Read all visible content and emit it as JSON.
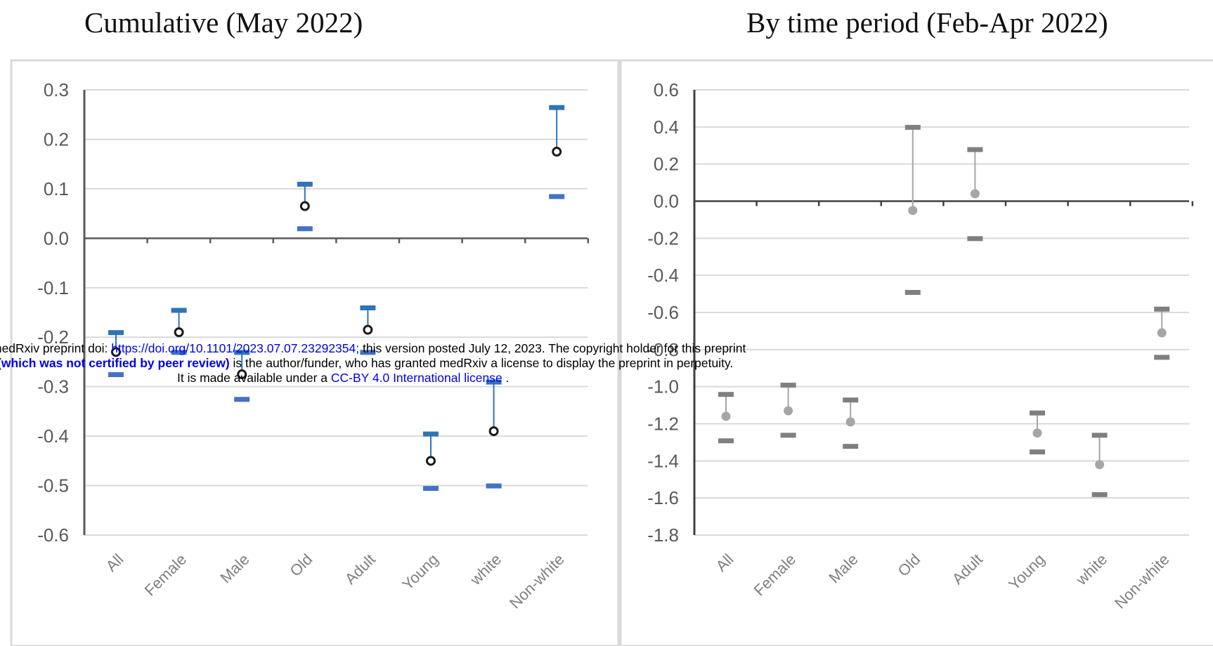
{
  "chart_data": [
    {
      "type": "scatter",
      "title": "Cumulative (May 2022)",
      "categories": [
        "All",
        "Female",
        "Male",
        "Old",
        "Adult",
        "Young",
        "white",
        "Non-white"
      ],
      "ylim": [
        -0.6,
        0.3
      ],
      "yticks": [
        "0.3",
        "0.2",
        "0.1",
        "0.0",
        "-0.1",
        "-0.2",
        "-0.3",
        "-0.4",
        "-0.5",
        "-0.6"
      ],
      "grid": true,
      "estimate": [
        -0.23,
        -0.19,
        -0.275,
        0.065,
        -0.185,
        -0.45,
        -0.39,
        0.175
      ],
      "upper": [
        -0.19,
        -0.145,
        -0.23,
        0.11,
        -0.14,
        -0.395,
        -0.29,
        0.265
      ],
      "lower": [
        -0.275,
        -0.23,
        -0.325,
        0.02,
        -0.23,
        -0.505,
        -0.5,
        0.085
      ],
      "colors": {
        "estimate_marker": "#1a1a1a",
        "upper_cap": "#2e75b6",
        "lower_cap": "#4472c4",
        "whisker": "#2e75b6",
        "grid": "#d9d9d9",
        "axis": "#595959"
      }
    },
    {
      "type": "scatter",
      "title": "By time period (Feb-Apr 2022)",
      "categories": [
        "All",
        "Female",
        "Male",
        "Old",
        "Adult",
        "Young",
        "white",
        "Non-white"
      ],
      "ylim": [
        -1.8,
        0.6
      ],
      "yticks": [
        "0.6",
        "0.4",
        "0.2",
        "0.0",
        "-0.2",
        "-0.4",
        "-0.6",
        "-0.8",
        "-1.0",
        "-1.2",
        "-1.4",
        "-1.6",
        "-1.8"
      ],
      "grid": true,
      "estimate": [
        -1.16,
        -1.13,
        -1.19,
        -0.05,
        0.04,
        -1.25,
        -1.42,
        -0.71
      ],
      "upper": [
        -1.04,
        -0.99,
        -1.07,
        0.4,
        0.28,
        -1.14,
        -1.26,
        -0.58
      ],
      "lower": [
        -1.29,
        -1.26,
        -1.32,
        -0.49,
        -0.2,
        -1.35,
        -1.58,
        -0.84
      ],
      "colors": {
        "estimate_marker": "#a6a6a6",
        "upper_cap": "#7f7f7f",
        "lower_cap": "#7f7f7f",
        "whisker": "#a6a6a6",
        "grid": "#d9d9d9",
        "axis": "#404040"
      }
    }
  ],
  "notice": {
    "line1_pre": "medRxiv preprint doi: ",
    "line1_link": "https://doi.org/10.1101/2023.07.07.23292354",
    "line1_post": "; this version posted July 12, 2023. The copyright holder for this preprint",
    "line2_bold": "(which was not certified by peer review)",
    "line2_post": " is the author/funder, who has granted medRxiv a license to display the preprint in perpetuity.",
    "line3_pre": "It is made available under a ",
    "line3_link": "CC-BY 4.0 International license",
    "line3_post": " ."
  }
}
